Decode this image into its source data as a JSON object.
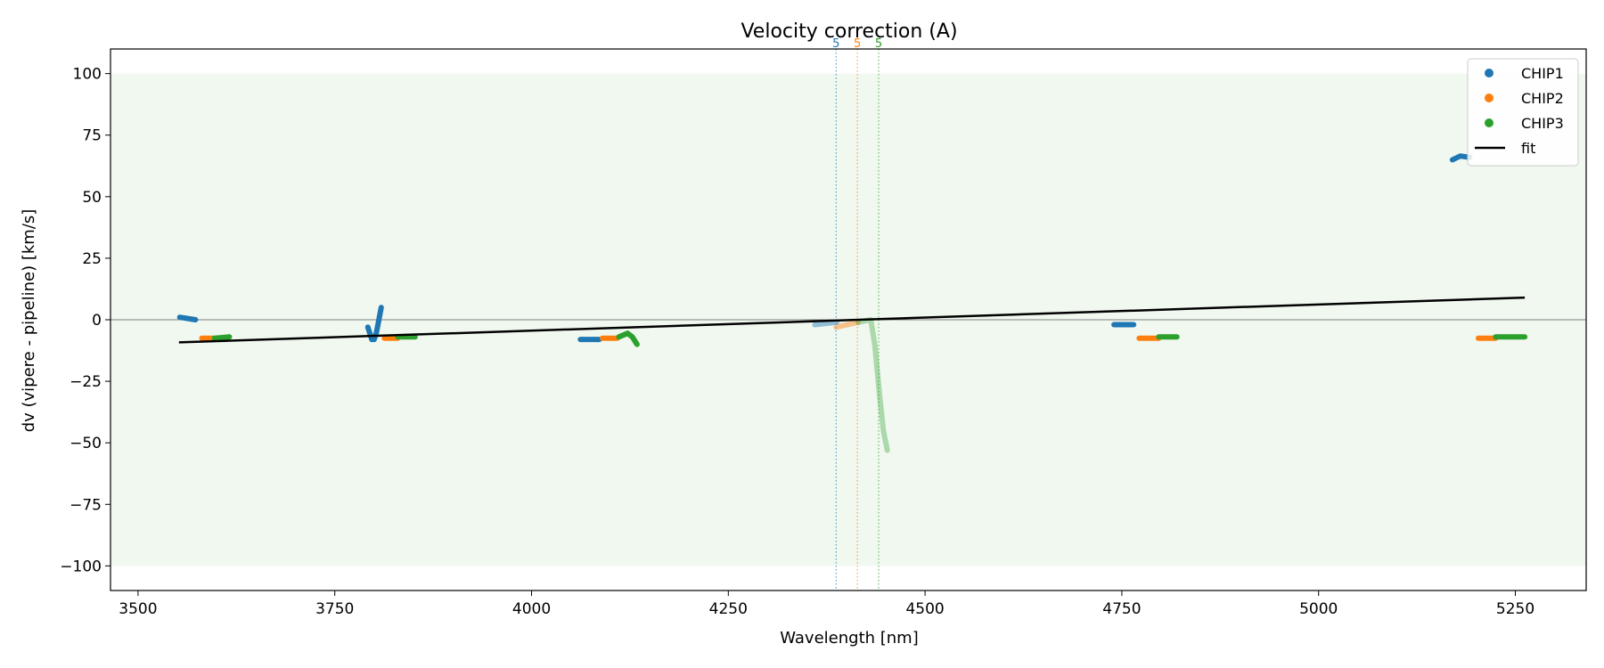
{
  "chart_data": {
    "type": "scatter",
    "title": "Velocity correction (A)",
    "xlabel": "Wavelength [nm]",
    "ylabel": "dv (vipere - pipeline) [km/s]",
    "xlim": [
      3465,
      5340
    ],
    "ylim": [
      -110,
      110
    ],
    "xticks": [
      3500,
      3750,
      4000,
      4250,
      4500,
      4750,
      5000,
      5250
    ],
    "yticks": [
      -100,
      -75,
      -50,
      -25,
      0,
      25,
      50,
      75,
      100
    ],
    "xtick_labels": [
      "3500",
      "3750",
      "4000",
      "4250",
      "4500",
      "4750",
      "5000",
      "5250"
    ],
    "ytick_labels": [
      "−100",
      "−75",
      "−50",
      "−25",
      "0",
      "25",
      "50",
      "75",
      "100"
    ],
    "band": {
      "ymin": -100,
      "ymax": 100,
      "color": "#2ca02c",
      "opacity": 0.07
    },
    "zero_line": 0,
    "legend_placement": "top-right",
    "series": [
      {
        "name": "CHIP1",
        "color": "#1f77b4",
        "segments": [
          {
            "x": [
              3553,
              3573
            ],
            "y": [
              1,
              0
            ],
            "alpha": 1
          },
          {
            "x": [
              3792,
              3797,
              3800,
              3803,
              3806,
              3809
            ],
            "y": [
              -3,
              -8,
              -8,
              -5,
              0,
              5
            ],
            "alpha": 1
          },
          {
            "x": [
              4062,
              4086
            ],
            "y": [
              -8,
              -8
            ],
            "alpha": 1
          },
          {
            "x": [
              4360,
              4388
            ],
            "y": [
              -2,
              -1
            ],
            "alpha": 0.45
          },
          {
            "x": [
              4740,
              4765
            ],
            "y": [
              -2,
              -2
            ],
            "alpha": 1
          },
          {
            "x": [
              5170,
              5180,
              5192
            ],
            "y": [
              65,
              66.5,
              66
            ],
            "alpha": 1
          }
        ]
      },
      {
        "name": "CHIP2",
        "color": "#ff7f0e",
        "segments": [
          {
            "x": [
              3581,
              3596
            ],
            "y": [
              -7.5,
              -7.5
            ],
            "alpha": 1
          },
          {
            "x": [
              3813,
              3830
            ],
            "y": [
              -7.5,
              -7.5
            ],
            "alpha": 1
          },
          {
            "x": [
              4090,
              4109
            ],
            "y": [
              -7.5,
              -7.5
            ],
            "alpha": 1
          },
          {
            "x": [
              4387,
              4415
            ],
            "y": [
              -3,
              -1
            ],
            "alpha": 0.45
          },
          {
            "x": [
              4772,
              4797
            ],
            "y": [
              -7.5,
              -7.5
            ],
            "alpha": 1
          },
          {
            "x": [
              5203,
              5225
            ],
            "y": [
              -7.5,
              -7.5
            ],
            "alpha": 1
          }
        ]
      },
      {
        "name": "CHIP3",
        "color": "#2ca02c",
        "segments": [
          {
            "x": [
              3597,
              3616
            ],
            "y": [
              -7.5,
              -7
            ],
            "alpha": 1
          },
          {
            "x": [
              3830,
              3852
            ],
            "y": [
              -7,
              -7
            ],
            "alpha": 1
          },
          {
            "x": [
              4111,
              4122,
              4128,
              4134
            ],
            "y": [
              -7,
              -5.5,
              -7,
              -10
            ],
            "alpha": 1
          },
          {
            "x": [
              4415,
              4431,
              4436,
              4442,
              4447,
              4452
            ],
            "y": [
              -1,
              0,
              -10,
              -30,
              -45,
              -53
            ],
            "alpha": 0.35
          },
          {
            "x": [
              4797,
              4820
            ],
            "y": [
              -7,
              -7
            ],
            "alpha": 1
          },
          {
            "x": [
              5225,
              5262
            ],
            "y": [
              -7,
              -7
            ],
            "alpha": 1
          }
        ]
      }
    ],
    "fit": {
      "name": "fit",
      "color": "#000000",
      "x": [
        3552,
        5262
      ],
      "y": [
        -9.2,
        9
      ]
    },
    "vlines": [
      {
        "x": 4387,
        "label": "5",
        "color": "#1f77b4"
      },
      {
        "x": 4414,
        "label": "5",
        "color": "#ff7f0e"
      },
      {
        "x": 4441,
        "label": "5",
        "color": "#2ca02c"
      }
    ]
  }
}
